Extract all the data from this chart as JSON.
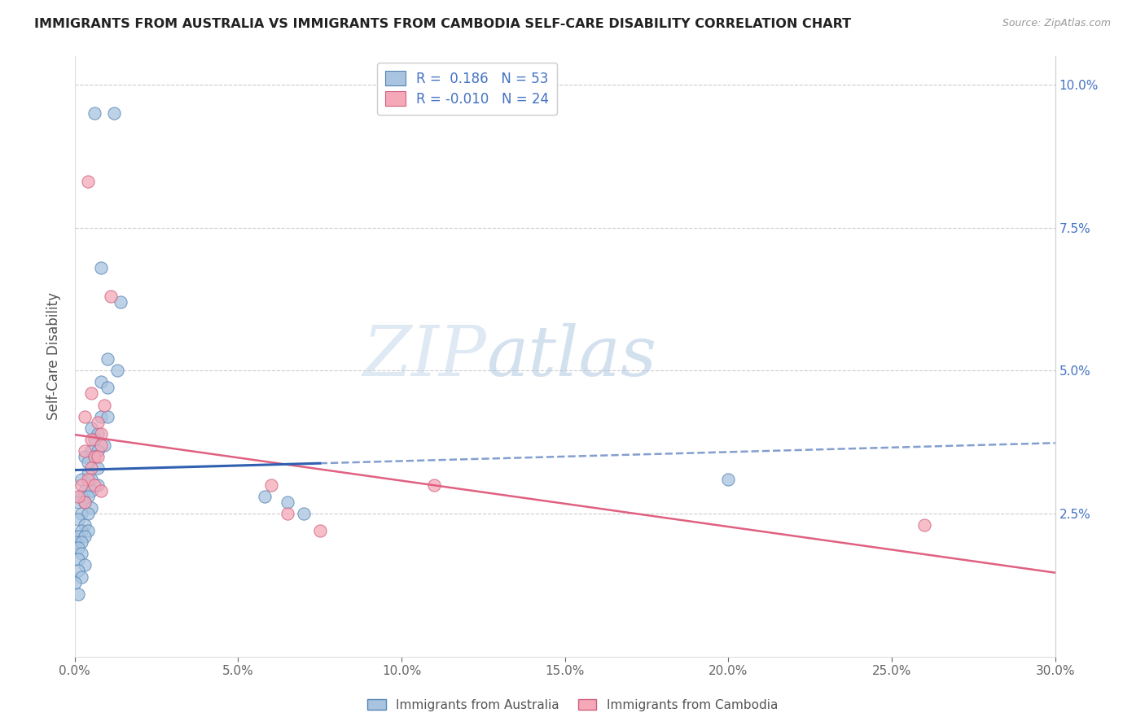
{
  "title": "IMMIGRANTS FROM AUSTRALIA VS IMMIGRANTS FROM CAMBODIA SELF-CARE DISABILITY CORRELATION CHART",
  "source": "Source: ZipAtlas.com",
  "xlabel_vals": [
    0.0,
    0.05,
    0.1,
    0.15,
    0.2,
    0.25,
    0.3
  ],
  "ylabel_vals_right": [
    0.025,
    0.05,
    0.075,
    0.1
  ],
  "xlim": [
    0.0,
    0.3
  ],
  "ylim": [
    0.0,
    0.105
  ],
  "ylabel": "Self-Care Disability",
  "legend_australia": {
    "R": 0.186,
    "N": 53
  },
  "legend_cambodia": {
    "R": -0.01,
    "N": 24
  },
  "color_australia": "#a8c4e0",
  "color_cambodia": "#f4a8b8",
  "color_australia_edge": "#5585b5",
  "color_cambodia_edge": "#d06080",
  "trendline_australia_color": "#3060b0",
  "trendline_cambodia_color": "#e06080",
  "watermark": "ZIPatlas",
  "australia_points": [
    [
      0.006,
      0.095
    ],
    [
      0.012,
      0.095
    ],
    [
      0.008,
      0.068
    ],
    [
      0.014,
      0.062
    ],
    [
      0.01,
      0.052
    ],
    [
      0.013,
      0.05
    ],
    [
      0.008,
      0.048
    ],
    [
      0.01,
      0.047
    ],
    [
      0.008,
      0.042
    ],
    [
      0.01,
      0.042
    ],
    [
      0.005,
      0.04
    ],
    [
      0.007,
      0.039
    ],
    [
      0.006,
      0.038
    ],
    [
      0.009,
      0.037
    ],
    [
      0.005,
      0.036
    ],
    [
      0.007,
      0.036
    ],
    [
      0.003,
      0.035
    ],
    [
      0.006,
      0.035
    ],
    [
      0.004,
      0.034
    ],
    [
      0.007,
      0.033
    ],
    [
      0.004,
      0.032
    ],
    [
      0.002,
      0.031
    ],
    [
      0.005,
      0.031
    ],
    [
      0.007,
      0.03
    ],
    [
      0.003,
      0.029
    ],
    [
      0.005,
      0.029
    ],
    [
      0.002,
      0.028
    ],
    [
      0.004,
      0.028
    ],
    [
      0.001,
      0.027
    ],
    [
      0.003,
      0.027
    ],
    [
      0.005,
      0.026
    ],
    [
      0.002,
      0.025
    ],
    [
      0.004,
      0.025
    ],
    [
      0.001,
      0.024
    ],
    [
      0.003,
      0.023
    ],
    [
      0.002,
      0.022
    ],
    [
      0.004,
      0.022
    ],
    [
      0.001,
      0.021
    ],
    [
      0.003,
      0.021
    ],
    [
      0.0,
      0.02
    ],
    [
      0.002,
      0.02
    ],
    [
      0.001,
      0.019
    ],
    [
      0.002,
      0.018
    ],
    [
      0.001,
      0.017
    ],
    [
      0.003,
      0.016
    ],
    [
      0.001,
      0.015
    ],
    [
      0.002,
      0.014
    ],
    [
      0.0,
      0.013
    ],
    [
      0.001,
      0.011
    ],
    [
      0.058,
      0.028
    ],
    [
      0.065,
      0.027
    ],
    [
      0.07,
      0.025
    ],
    [
      0.2,
      0.031
    ]
  ],
  "cambodia_points": [
    [
      0.004,
      0.083
    ],
    [
      0.011,
      0.063
    ],
    [
      0.005,
      0.046
    ],
    [
      0.009,
      0.044
    ],
    [
      0.003,
      0.042
    ],
    [
      0.007,
      0.041
    ],
    [
      0.008,
      0.039
    ],
    [
      0.005,
      0.038
    ],
    [
      0.008,
      0.037
    ],
    [
      0.003,
      0.036
    ],
    [
      0.006,
      0.035
    ],
    [
      0.007,
      0.035
    ],
    [
      0.005,
      0.033
    ],
    [
      0.004,
      0.031
    ],
    [
      0.002,
      0.03
    ],
    [
      0.006,
      0.03
    ],
    [
      0.008,
      0.029
    ],
    [
      0.003,
      0.027
    ],
    [
      0.06,
      0.03
    ],
    [
      0.065,
      0.025
    ],
    [
      0.075,
      0.022
    ],
    [
      0.11,
      0.03
    ],
    [
      0.26,
      0.023
    ],
    [
      0.001,
      0.028
    ]
  ]
}
